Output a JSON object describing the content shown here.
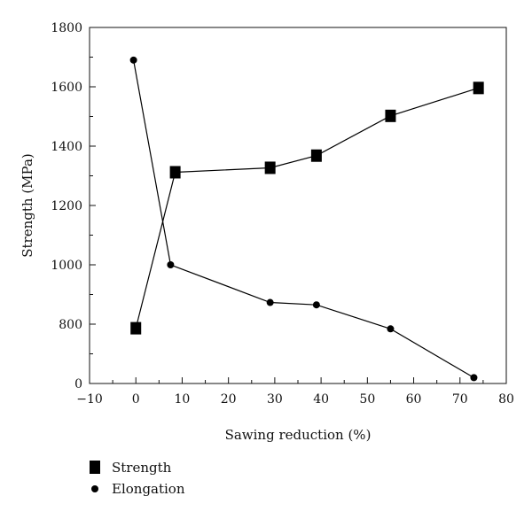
{
  "chart_data": {
    "type": "line",
    "xlabel": "Sawing reduction (%)",
    "ylabel": "Strength (MPa)",
    "xlim": [
      -10,
      80
    ],
    "ylim": [
      0,
      1800
    ],
    "x_ticks": [
      -10,
      0,
      10,
      20,
      30,
      40,
      50,
      60,
      70,
      80
    ],
    "x_tick_labels": [
      "−10",
      "0",
      "10",
      "20",
      "30",
      "40",
      "50",
      "60",
      "70",
      "80"
    ],
    "y_ticks": [
      0,
      800,
      1000,
      1200,
      1400,
      1600,
      1800
    ],
    "y_tick_labels": [
      "0",
      "800",
      "1000",
      "1200",
      "1400",
      "1600",
      "1800"
    ],
    "axis_break": "y between 0 and 700 (compressed)",
    "grid": false,
    "legend_position": "bottom-left, below plot",
    "series": [
      {
        "name": "Strength",
        "marker": "square",
        "color": "#000000",
        "x": [
          0,
          8.5,
          29,
          39,
          55,
          74
        ],
        "y": [
          745,
          1312,
          1327,
          1368,
          1502,
          1596
        ]
      },
      {
        "name": "Elongation",
        "marker": "circle",
        "color": "#000000",
        "x": [
          -0.5,
          7.5,
          29,
          39,
          55,
          73
        ],
        "y": [
          1690,
          1000,
          873,
          865,
          737,
          79
        ]
      }
    ]
  }
}
